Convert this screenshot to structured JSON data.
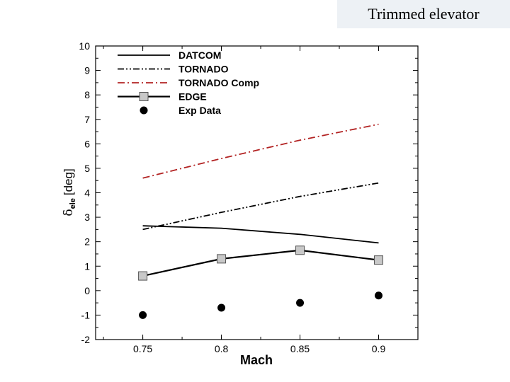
{
  "header": {
    "title": "Trimmed elevator"
  },
  "chart_data": {
    "type": "line",
    "title": "Trimmed elevator",
    "xlabel": "Mach",
    "ylabel": {
      "symbol": "δ",
      "subscript": "ele",
      "unit": "[deg]"
    },
    "x": [
      0.75,
      0.8,
      0.85,
      0.9
    ],
    "xlim": [
      0.72,
      0.925
    ],
    "ylim": [
      -2,
      10
    ],
    "xticks": [
      "0.75",
      "0.8",
      "0.85",
      "0.9"
    ],
    "yticks": [
      "-2",
      "-1",
      "0",
      "1",
      "2",
      "3",
      "4",
      "5",
      "6",
      "7",
      "8",
      "9",
      "10"
    ],
    "grid": false,
    "legend_position": "top-left",
    "series": [
      {
        "name": "DATCOM",
        "values": [
          2.65,
          2.55,
          2.3,
          1.95
        ],
        "color": "#000000",
        "style": "solid",
        "marker": "none"
      },
      {
        "name": "TORNADO",
        "values": [
          2.5,
          3.2,
          3.85,
          4.4
        ],
        "color": "#000000",
        "style": "dashdotdot",
        "marker": "none"
      },
      {
        "name": "TORNADO Comp",
        "values": [
          4.6,
          5.4,
          6.15,
          6.8
        ],
        "color": "#b22222",
        "style": "dashdot",
        "marker": "none"
      },
      {
        "name": "EDGE",
        "values": [
          0.6,
          1.3,
          1.65,
          1.25
        ],
        "color": "#000000",
        "style": "solid",
        "marker": "square"
      },
      {
        "name": "Exp Data",
        "values": [
          -1.0,
          -0.7,
          -0.5,
          -0.2
        ],
        "color": "#000000",
        "style": "none",
        "marker": "circle"
      }
    ]
  }
}
